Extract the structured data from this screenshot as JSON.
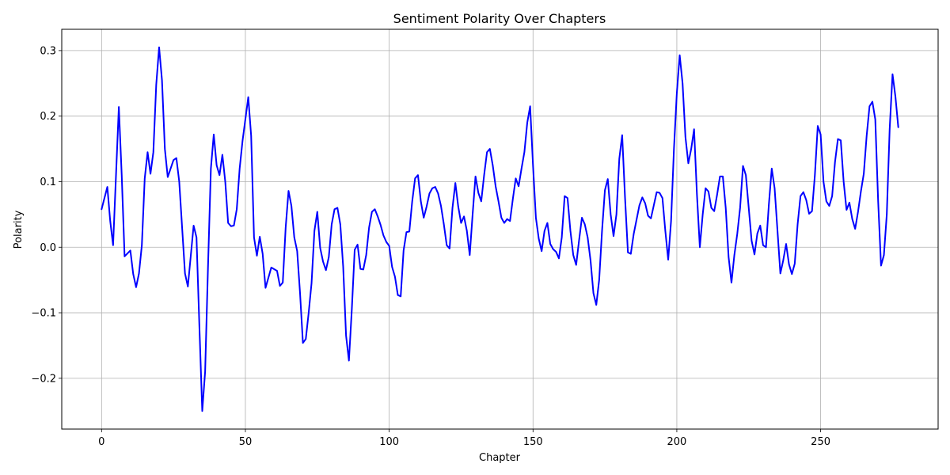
{
  "chart_data": {
    "type": "line",
    "title": "Sentiment Polarity Over Chapters",
    "xlabel": "Chapter",
    "ylabel": "Polarity",
    "xlim": [
      -13.85,
      290.85
    ],
    "ylim": [
      -0.2775,
      0.3325
    ],
    "xticks": [
      0,
      50,
      100,
      150,
      200,
      250
    ],
    "xtick_labels": [
      "0",
      "50",
      "100",
      "150",
      "200",
      "250"
    ],
    "yticks": [
      -0.2,
      -0.1,
      0.0,
      0.1,
      0.2,
      0.3
    ],
    "ytick_labels": [
      "−0.2",
      "−0.1",
      "0.0",
      "0.1",
      "0.2",
      "0.3"
    ],
    "grid": true,
    "line_color": "#0000ff",
    "series": [
      {
        "x": [
          0,
          2,
          3,
          4,
          6,
          7,
          8,
          10,
          11,
          12,
          13,
          14,
          15,
          16,
          17,
          18,
          19,
          20,
          21,
          22,
          23,
          25,
          26,
          27,
          28,
          29,
          30,
          32,
          33,
          34,
          35,
          36,
          37,
          38,
          39,
          40,
          41,
          42,
          43,
          44,
          45,
          46,
          47,
          48,
          49,
          51,
          52,
          53,
          54,
          55,
          56,
          57,
          59,
          61,
          62,
          63,
          64,
          65,
          66,
          67,
          68,
          69,
          70,
          71,
          72,
          73,
          74,
          75,
          76,
          77,
          78,
          79,
          80,
          81,
          82,
          83,
          84,
          85,
          86,
          87,
          88,
          89,
          90,
          91,
          92,
          93,
          94,
          95,
          96,
          97,
          98,
          99,
          100,
          101,
          102,
          103,
          104,
          105,
          106,
          107,
          108,
          109,
          110,
          111,
          112,
          113,
          114,
          115,
          116,
          117,
          118,
          119,
          120,
          121,
          122,
          123,
          124,
          125,
          126,
          127,
          128,
          129,
          130,
          131,
          132,
          133,
          134,
          135,
          136,
          137,
          138,
          139,
          140,
          141,
          142,
          143,
          144,
          145,
          146,
          147,
          148,
          149,
          150,
          151,
          152,
          153,
          154,
          155,
          156,
          157,
          158,
          159,
          160,
          161,
          162,
          163,
          164,
          165,
          166,
          167,
          168,
          169,
          170,
          171,
          172,
          173,
          174,
          175,
          176,
          177,
          178,
          179,
          180,
          181,
          182,
          183,
          184,
          185,
          186,
          187,
          188,
          189,
          190,
          191,
          192,
          193,
          194,
          195,
          196,
          197,
          198,
          199,
          200,
          201,
          202,
          203,
          204,
          205,
          206,
          207,
          208,
          209,
          210,
          211,
          212,
          213,
          214,
          215,
          216,
          217,
          218,
          219,
          220,
          221,
          222,
          223,
          224,
          225,
          226,
          227,
          228,
          229,
          230,
          231,
          232,
          233,
          234,
          235,
          236,
          237,
          238,
          239,
          240,
          241,
          242,
          243,
          244,
          245,
          246,
          247,
          248,
          249,
          250,
          251,
          252,
          253,
          254,
          255,
          256,
          257,
          258,
          259,
          260,
          261,
          262,
          263,
          264,
          265,
          266,
          267,
          268,
          269,
          270,
          271,
          272,
          273,
          274,
          275,
          276,
          277
        ],
        "y": [
          0.058,
          0.092,
          0.04,
          0.003,
          0.214,
          0.11,
          -0.014,
          -0.005,
          -0.041,
          -0.061,
          -0.04,
          0.003,
          0.105,
          0.145,
          0.112,
          0.145,
          0.248,
          0.305,
          0.255,
          0.15,
          0.107,
          0.133,
          0.136,
          0.1,
          0.03,
          -0.04,
          -0.06,
          0.033,
          0.015,
          -0.12,
          -0.25,
          -0.19,
          -0.03,
          0.12,
          0.172,
          0.125,
          0.11,
          0.141,
          0.1,
          0.037,
          0.032,
          0.033,
          0.058,
          0.12,
          0.162,
          0.229,
          0.17,
          0.015,
          -0.013,
          0.016,
          -0.01,
          -0.062,
          -0.031,
          -0.036,
          -0.059,
          -0.054,
          0.03,
          0.086,
          0.063,
          0.015,
          -0.006,
          -0.07,
          -0.146,
          -0.14,
          -0.1,
          -0.055,
          0.025,
          0.054,
          -0.001,
          -0.022,
          -0.035,
          -0.015,
          0.035,
          0.058,
          0.06,
          0.035,
          -0.03,
          -0.135,
          -0.173,
          -0.095,
          -0.004,
          0.004,
          -0.033,
          -0.034,
          -0.012,
          0.03,
          0.054,
          0.058,
          0.047,
          0.034,
          0.018,
          0.008,
          0.002,
          -0.03,
          -0.045,
          -0.073,
          -0.075,
          -0.005,
          0.023,
          0.024,
          0.07,
          0.105,
          0.11,
          0.07,
          0.045,
          0.062,
          0.082,
          0.09,
          0.092,
          0.082,
          0.063,
          0.035,
          0.003,
          -0.002,
          0.06,
          0.098,
          0.062,
          0.037,
          0.047,
          0.025,
          -0.012,
          0.05,
          0.108,
          0.083,
          0.07,
          0.11,
          0.145,
          0.15,
          0.125,
          0.093,
          0.07,
          0.045,
          0.037,
          0.043,
          0.04,
          0.074,
          0.105,
          0.093,
          0.12,
          0.145,
          0.19,
          0.215,
          0.125,
          0.045,
          0.013,
          -0.006,
          0.025,
          0.037,
          0.005,
          -0.003,
          -0.007,
          -0.017,
          0.015,
          0.078,
          0.075,
          0.025,
          -0.012,
          -0.027,
          0.01,
          0.045,
          0.035,
          0.015,
          -0.02,
          -0.07,
          -0.088,
          -0.05,
          0.025,
          0.087,
          0.104,
          0.05,
          0.017,
          0.05,
          0.135,
          0.171,
          0.075,
          -0.008,
          -0.01,
          0.02,
          0.042,
          0.064,
          0.076,
          0.067,
          0.048,
          0.044,
          0.064,
          0.084,
          0.083,
          0.075,
          0.025,
          -0.019,
          0.04,
          0.15,
          0.235,
          0.293,
          0.25,
          0.168,
          0.128,
          0.15,
          0.18,
          0.08,
          0,
          0.05,
          0.09,
          0.085,
          0.06,
          0.055,
          0.08,
          0.108,
          0.108,
          0.06,
          -0.015,
          -0.054,
          -0.012,
          0.02,
          0.06,
          0.124,
          0.11,
          0.06,
          0.01,
          -0.011,
          0.021,
          0.033,
          0.003,
          0,
          0.065,
          0.12,
          0.09,
          0.025,
          -0.04,
          -0.02,
          0.005,
          -0.026,
          -0.041,
          -0.025,
          0.035,
          0.078,
          0.084,
          0.072,
          0.051,
          0.055,
          0.11,
          0.185,
          0.172,
          0.1,
          0.07,
          0.063,
          0.078,
          0.13,
          0.165,
          0.163,
          0.1,
          0.057,
          0.068,
          0.043,
          0.028,
          0.054,
          0.085,
          0.112,
          0.17,
          0.215,
          0.222,
          0.195,
          0.07,
          -0.028,
          -0.012,
          0.05,
          0.18,
          0.264,
          0.23,
          0.183
        ]
      }
    ]
  }
}
